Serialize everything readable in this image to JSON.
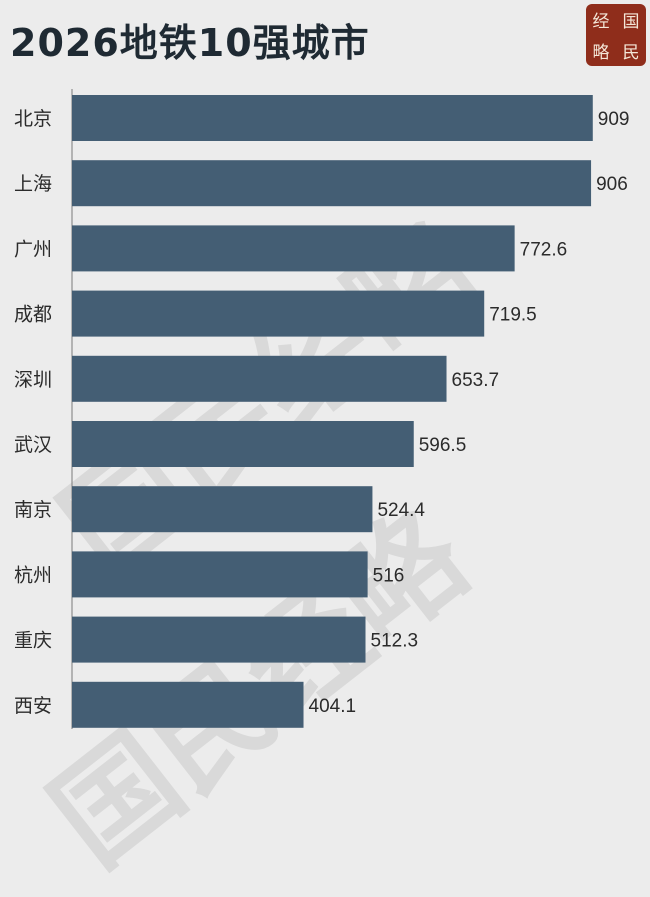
{
  "header": {
    "title": "2026地铁10强城市",
    "logo_chars": [
      "经",
      "国",
      "略",
      "民"
    ]
  },
  "watermark": {
    "text": "国民经略"
  },
  "colors": {
    "bar": "#445e74",
    "title": "#1f2a33",
    "logo_bg": "#8f2d1b",
    "background": "#ececec"
  },
  "chart_data": {
    "type": "bar",
    "orientation": "horizontal",
    "categories": [
      "北京",
      "上海",
      "广州",
      "成都",
      "深圳",
      "武汉",
      "南京",
      "杭州",
      "重庆",
      "西安"
    ],
    "values": [
      909,
      906,
      772.6,
      719.5,
      653.7,
      596.5,
      524.4,
      516,
      512.3,
      404.1
    ],
    "value_labels": [
      "909",
      "906",
      "772.6",
      "719.5",
      "653.7",
      "596.5",
      "524.4",
      "516",
      "512.3",
      "404.1"
    ],
    "title": "2026地铁10强城市",
    "xlabel": "",
    "ylabel": "",
    "xlim": [
      0,
      960
    ],
    "grid": false,
    "legend": "none"
  }
}
